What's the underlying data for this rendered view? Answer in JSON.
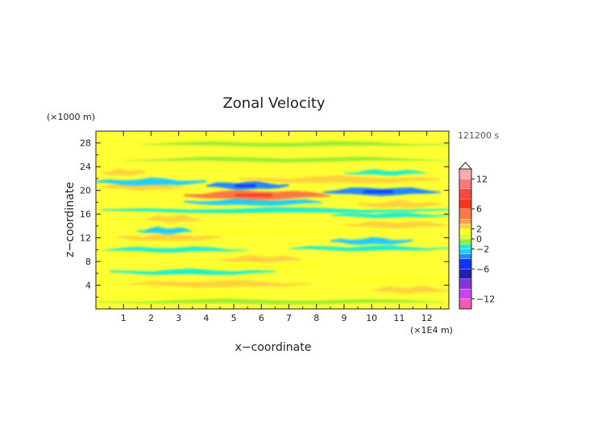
{
  "chart_data": {
    "type": "heatmap",
    "title": "Zonal Velocity",
    "xlabel": "x−coordinate",
    "ylabel": "z−coordinate",
    "x_unit": "(×1E4 m)",
    "y_unit": "(×1000 m)",
    "time_label": "121200 s",
    "xlim": [
      0,
      12.8
    ],
    "ylim": [
      0,
      30
    ],
    "x_ticks": [
      "1",
      "2",
      "3",
      "4",
      "5",
      "6",
      "7",
      "8",
      "9",
      "10",
      "11",
      "12"
    ],
    "y_ticks": [
      "4",
      "8",
      "12",
      "16",
      "20",
      "24",
      "28"
    ],
    "colorbar_ticks": [
      "12",
      "6",
      "2",
      "0",
      "−2",
      "−6",
      "−12"
    ],
    "colorbar_levels": [
      -14,
      -12,
      -10,
      -8,
      -6,
      -4,
      -3,
      -2,
      -1,
      0,
      1,
      2,
      3,
      4,
      6,
      8,
      10,
      12,
      14
    ],
    "colorbar_colors": [
      "#ff55b4",
      "#cc44ee",
      "#8833dd",
      "#2222aa",
      "#1133ff",
      "#2288ff",
      "#22ccff",
      "#22eecc",
      "#99ee33",
      "#ddff33",
      "#ffff22",
      "#ffd23c",
      "#f0a050",
      "#ff7744",
      "#ff3322",
      "#ff4444",
      "#ff7777",
      "#ffaaaa"
    ],
    "colors": {
      "frame": "#222222",
      "background": "#ffff33"
    },
    "bands": [
      {
        "z": 1.2,
        "x0": 0.0,
        "x1": 12.8,
        "value": -1.0
      },
      {
        "z": 2.4,
        "x0": 0.5,
        "x1": 6.5,
        "value": 1.2
      },
      {
        "z": 3.2,
        "x0": 10.0,
        "x1": 12.8,
        "value": 2.5
      },
      {
        "z": 4.2,
        "x0": 1.2,
        "x1": 7.8,
        "value": 2.6
      },
      {
        "z": 5.2,
        "x0": 8.5,
        "x1": 12.8,
        "value": 1.3
      },
      {
        "z": 6.2,
        "x0": 0.5,
        "x1": 6.5,
        "value": -1.5
      },
      {
        "z": 7.2,
        "x0": 3.5,
        "x1": 8.5,
        "value": 1.0
      },
      {
        "z": 8.4,
        "x0": 4.5,
        "x1": 7.5,
        "value": 2.5
      },
      {
        "z": 9.2,
        "x0": 0.3,
        "x1": 2.5,
        "value": 1.4
      },
      {
        "z": 10.0,
        "x0": 0.2,
        "x1": 5.5,
        "value": -1.3
      },
      {
        "z": 10.2,
        "x0": 7.0,
        "x1": 12.8,
        "value": -1.2
      },
      {
        "z": 11.4,
        "x0": 8.5,
        "x1": 11.5,
        "value": -2.6
      },
      {
        "z": 12.0,
        "x0": 0.8,
        "x1": 4.5,
        "value": 2.4
      },
      {
        "z": 12.8,
        "x0": 3.5,
        "x1": 9.0,
        "value": 1.2
      },
      {
        "z": 13.2,
        "x0": 1.5,
        "x1": 3.5,
        "value": -2.4
      },
      {
        "z": 14.2,
        "x0": 9.0,
        "x1": 12.8,
        "value": 2.4
      },
      {
        "z": 15.2,
        "x0": 1.8,
        "x1": 3.8,
        "value": 2.6
      },
      {
        "z": 15.8,
        "x0": 8.5,
        "x1": 12.8,
        "value": -1.4
      },
      {
        "z": 16.6,
        "x0": 0.2,
        "x1": 12.8,
        "value": -1.3
      },
      {
        "z": 17.6,
        "x0": 9.5,
        "x1": 12.5,
        "value": 2.6
      },
      {
        "z": 18.0,
        "x0": 3.2,
        "x1": 8.2,
        "value": -2.6
      },
      {
        "z": 19.2,
        "x0": 3.2,
        "x1": 8.5,
        "value": 4.5
      },
      {
        "z": 19.8,
        "x0": 8.2,
        "x1": 12.5,
        "value": -3.5
      },
      {
        "z": 20.6,
        "x0": 0.2,
        "x1": 3.2,
        "value": 2.5
      },
      {
        "z": 20.8,
        "x0": 4.0,
        "x1": 7.0,
        "value": -3.5
      },
      {
        "z": 21.4,
        "x0": 0.0,
        "x1": 4.0,
        "value": -2.7
      },
      {
        "z": 21.8,
        "x0": 5.2,
        "x1": 12.5,
        "value": 2.6
      },
      {
        "z": 23.0,
        "x0": 0.2,
        "x1": 1.8,
        "value": 2.4
      },
      {
        "z": 23.0,
        "x0": 9.0,
        "x1": 12.0,
        "value": -1.4
      },
      {
        "z": 25.2,
        "x0": 1.0,
        "x1": 12.8,
        "value": -1.0
      },
      {
        "z": 27.8,
        "x0": 1.5,
        "x1": 12.8,
        "value": -1.0
      }
    ]
  }
}
